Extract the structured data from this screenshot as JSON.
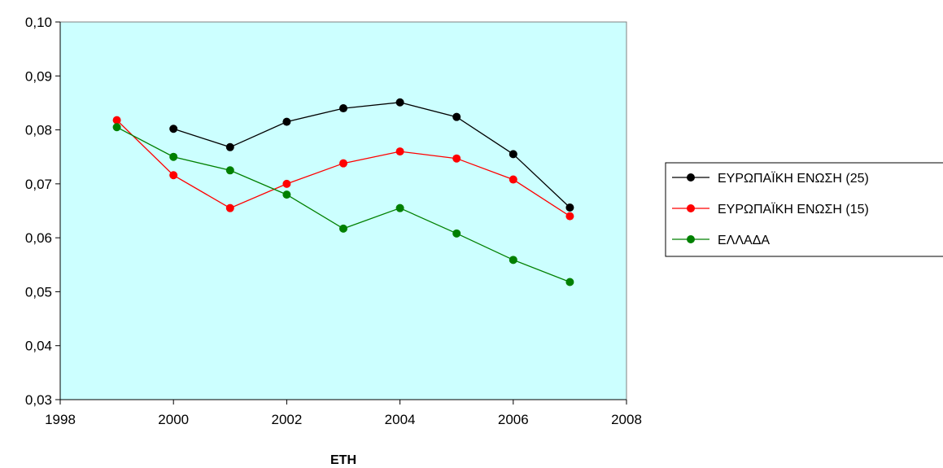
{
  "chart_data": {
    "type": "line",
    "title": "",
    "xlabel": "ΕΤΗ",
    "ylabel": "",
    "xlim": [
      1998,
      2008
    ],
    "ylim": [
      0.03,
      0.1
    ],
    "x_ticks": [
      1998,
      2000,
      2002,
      2004,
      2006,
      2008
    ],
    "x_tick_labels": [
      "1998",
      "2000",
      "2002",
      "2004",
      "2006",
      "2008"
    ],
    "y_ticks": [
      0.03,
      0.04,
      0.05,
      0.06,
      0.07,
      0.08,
      0.09,
      0.1
    ],
    "y_tick_labels": [
      "0,03",
      "0,04",
      "0,05",
      "0,06",
      "0,07",
      "0,08",
      "0,09",
      "0,10"
    ],
    "grid": false,
    "plot_background": "#ccffff",
    "legend_position": "right",
    "series": [
      {
        "name": "ΕΥΡΩΠΑΪΚΗ ΕΝΩΣΗ (25)",
        "color": "#000000",
        "x": [
          2000,
          2001,
          2002,
          2003,
          2004,
          2005,
          2006,
          2007
        ],
        "values": [
          0.0802,
          0.0768,
          0.0815,
          0.084,
          0.0851,
          0.0824,
          0.0755,
          0.0656
        ]
      },
      {
        "name": "ΕΥΡΩΠΑΪΚΗ ΕΝΩΣΗ (15)",
        "color": "#ff0000",
        "x": [
          1999,
          2000,
          2001,
          2002,
          2003,
          2004,
          2005,
          2006,
          2007
        ],
        "values": [
          0.0818,
          0.0716,
          0.0655,
          0.07,
          0.0738,
          0.076,
          0.0747,
          0.0708,
          0.064
        ]
      },
      {
        "name": "ΕΛΛΑΔΑ",
        "color": "#008000",
        "x": [
          1999,
          2000,
          2001,
          2002,
          2003,
          2004,
          2005,
          2006,
          2007
        ],
        "values": [
          0.0805,
          0.075,
          0.0725,
          0.068,
          0.0617,
          0.0655,
          0.0608,
          0.0559,
          0.0518
        ]
      }
    ]
  }
}
